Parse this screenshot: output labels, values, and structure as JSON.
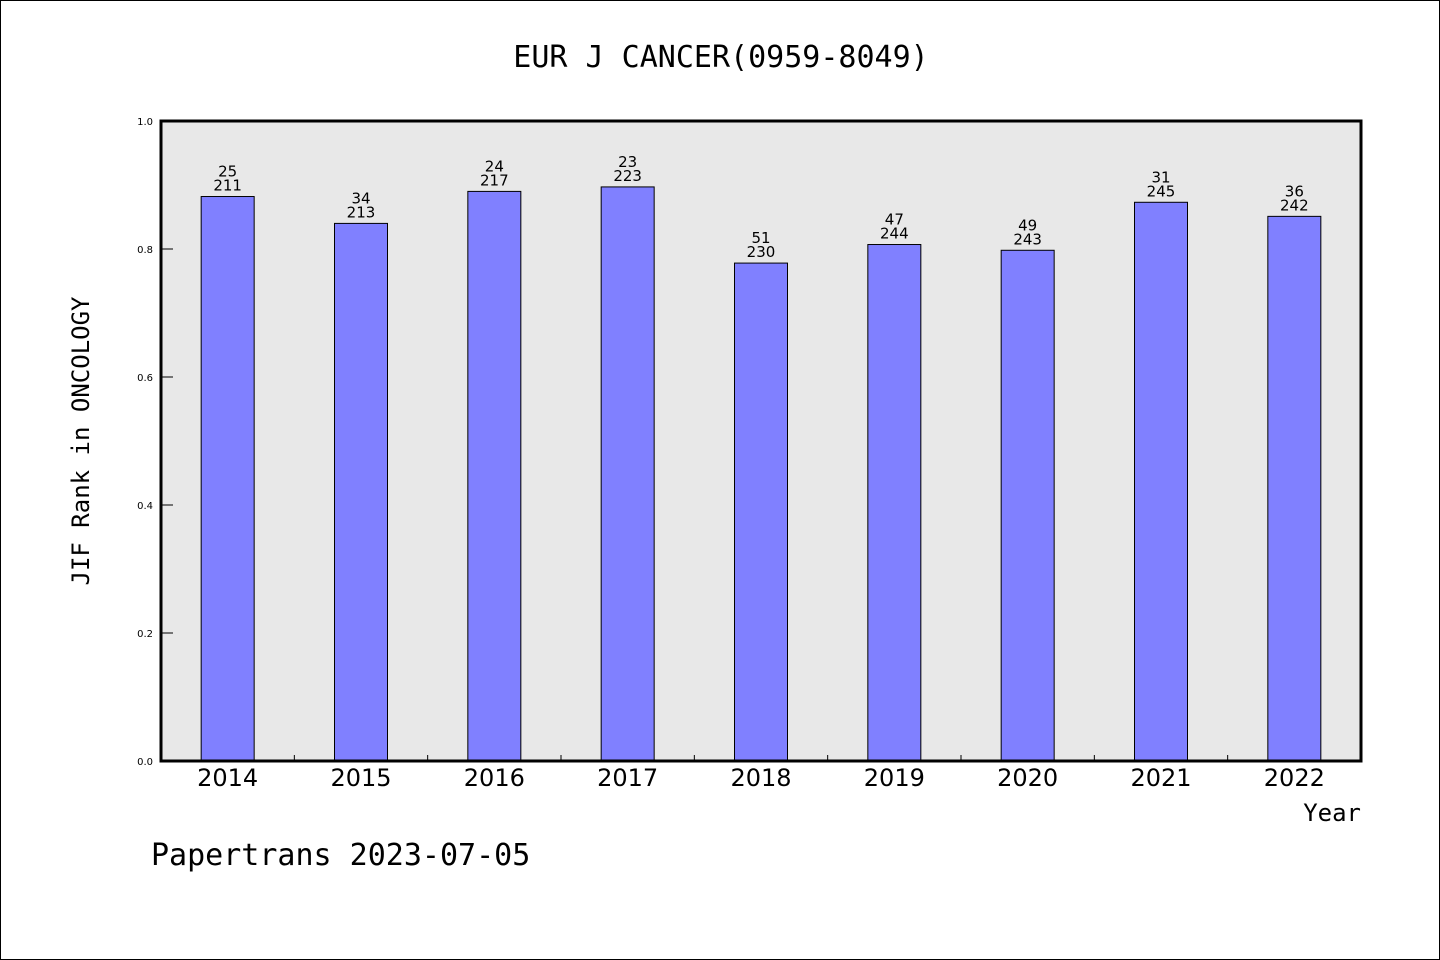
{
  "chart_data": {
    "type": "bar",
    "title": "EUR J CANCER(0959-8049)",
    "xlabel": "Year",
    "ylabel": "JIF Rank in ONCOLOGY",
    "ylim": [
      0.0,
      1.0
    ],
    "yticks": [
      "0.0",
      "0.2",
      "0.4",
      "0.6",
      "0.8",
      "1.0"
    ],
    "grid": false,
    "background": "#e8e8e8",
    "bar_color": "#8080ff",
    "categories": [
      "2014",
      "2015",
      "2016",
      "2017",
      "2018",
      "2019",
      "2020",
      "2021",
      "2022"
    ],
    "values": [
      0.882,
      0.84,
      0.89,
      0.897,
      0.778,
      0.807,
      0.798,
      0.873,
      0.851
    ],
    "rank_labels": [
      "25",
      "34",
      "24",
      "23",
      "51",
      "47",
      "49",
      "31",
      "36"
    ],
    "total_labels": [
      "211",
      "213",
      "217",
      "223",
      "230",
      "244",
      "243",
      "245",
      "242"
    ]
  },
  "footer": "Papertrans 2023-07-05"
}
